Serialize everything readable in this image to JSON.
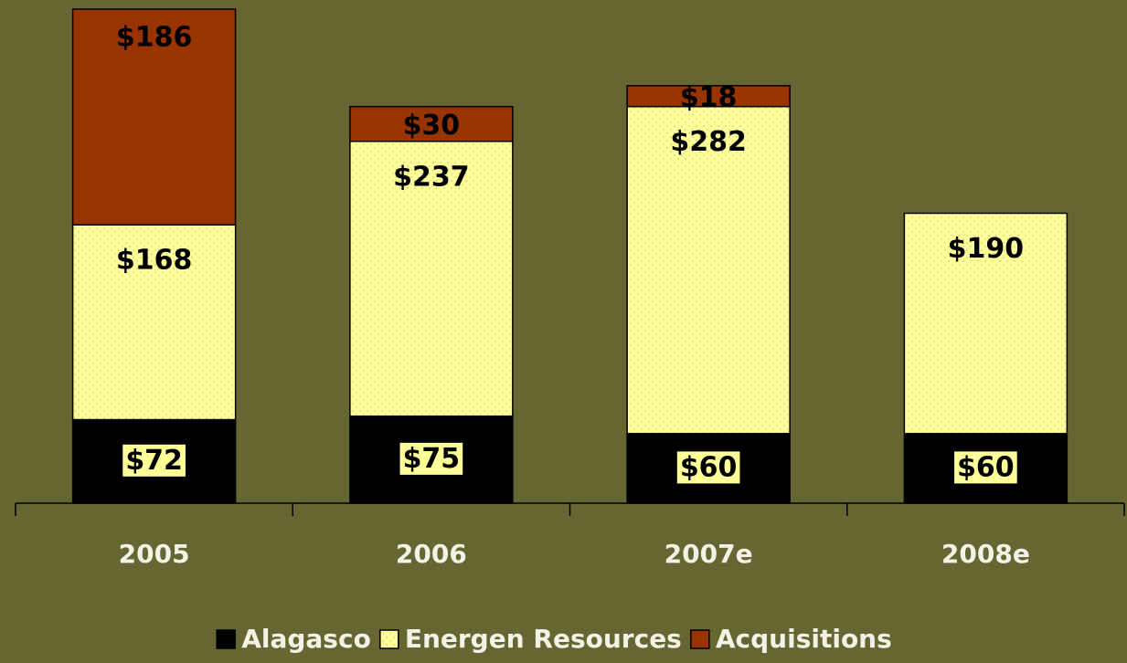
{
  "chart_data": {
    "type": "stacked_bar",
    "categories": [
      "2005",
      "2006",
      "2007e",
      "2008e"
    ],
    "series": [
      {
        "name": "Alagasco",
        "color": "#000000",
        "values": [
          72,
          75,
          60,
          60
        ],
        "value_labels": [
          "$72",
          "$75",
          "$60",
          "$60"
        ]
      },
      {
        "name": "Energen Resources",
        "color": "#ffff99",
        "values": [
          168,
          237,
          282,
          190
        ],
        "value_labels": [
          "$168",
          "$237",
          "$282",
          "$190"
        ]
      },
      {
        "name": "Acquisitions",
        "color": "#993300",
        "values": [
          186,
          30,
          18,
          null
        ],
        "value_labels": [
          "$186",
          "$30",
          "$18",
          null
        ]
      }
    ]
  }
}
